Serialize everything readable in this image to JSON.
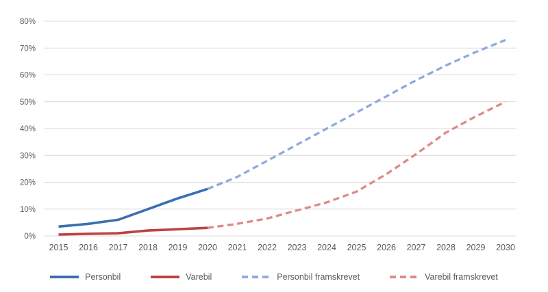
{
  "chart_data": {
    "type": "line",
    "x": [
      "2015",
      "2016",
      "2017",
      "2018",
      "2019",
      "2020",
      "2021",
      "2022",
      "2023",
      "2024",
      "2025",
      "2026",
      "2027",
      "2028",
      "2029",
      "2030"
    ],
    "series": [
      {
        "name": "Personbil",
        "color": "#3a6fb0",
        "style": "solid",
        "values": [
          3.5,
          4.5,
          6,
          10,
          14,
          17.5,
          null,
          null,
          null,
          null,
          null,
          null,
          null,
          null,
          null,
          null
        ]
      },
      {
        "name": "Varebil",
        "color": "#bc4340",
        "style": "solid",
        "values": [
          0.5,
          0.8,
          1,
          2,
          2.5,
          3,
          null,
          null,
          null,
          null,
          null,
          null,
          null,
          null,
          null,
          null
        ]
      },
      {
        "name": "Personbil framskrevet",
        "color": "#8faadc",
        "style": "dashed",
        "values": [
          null,
          null,
          null,
          null,
          null,
          17.5,
          22,
          28,
          34,
          40,
          46,
          52,
          58,
          63.5,
          68.5,
          73
        ]
      },
      {
        "name": "Varebil framskrevet",
        "color": "#dd8a87",
        "style": "dashed",
        "values": [
          null,
          null,
          null,
          null,
          null,
          3,
          4.5,
          6.5,
          9.5,
          12.5,
          16.5,
          23,
          30.5,
          38.5,
          44.5,
          50
        ]
      }
    ],
    "title": "",
    "xlabel": "",
    "ylabel": "",
    "ylim": [
      0,
      80
    ],
    "ytick_step": 10,
    "ytick_labels": [
      "0%",
      "10%",
      "20%",
      "30%",
      "40%",
      "50%",
      "60%",
      "70%",
      "80%"
    ],
    "grid": true,
    "legend_position": "bottom"
  },
  "style_colors": {
    "gridline": "#d9d9d9",
    "axis_text": "#595959",
    "background": "#ffffff"
  }
}
